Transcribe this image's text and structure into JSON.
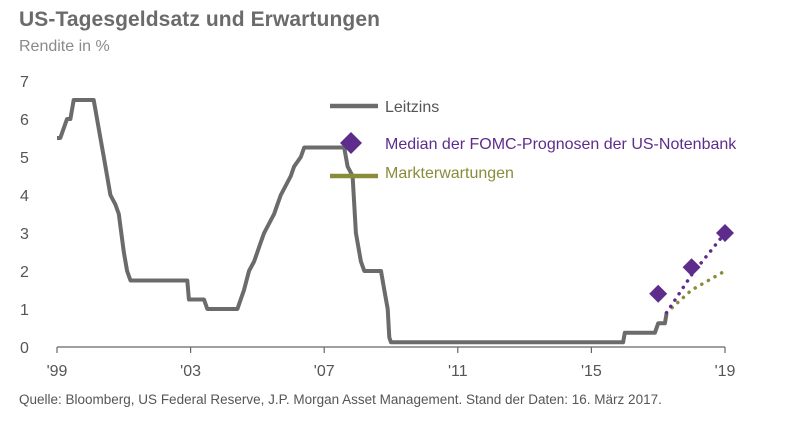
{
  "title": "US-Tagesgeldsatz und Erwartungen",
  "subtitle": "Rendite in %",
  "source": "Quelle: Bloomberg, US Federal Reserve, J.P. Morgan Asset Management. Stand der Daten: 16. März 2017.",
  "chart_data": {
    "type": "line",
    "xlim": [
      1999,
      2019
    ],
    "ylim": [
      0,
      7
    ],
    "x_ticks": [
      {
        "value": 1999,
        "label": "'99"
      },
      {
        "value": 2003,
        "label": "'03"
      },
      {
        "value": 2007,
        "label": "'07"
      },
      {
        "value": 2011,
        "label": "'11"
      },
      {
        "value": 2015,
        "label": "'15"
      },
      {
        "value": 2019,
        "label": "'19"
      }
    ],
    "y_ticks": [
      0,
      1,
      2,
      3,
      4,
      5,
      6,
      7
    ],
    "grid": false,
    "legend_position": "top-right",
    "series": [
      {
        "name": "Leitzins",
        "kind": "line",
        "color": "#6b6b6b",
        "points": [
          [
            1999.0,
            5.5
          ],
          [
            1999.1,
            5.5
          ],
          [
            1999.3,
            6.0
          ],
          [
            1999.4,
            6.0
          ],
          [
            1999.5,
            6.5
          ],
          [
            2000.0,
            6.5
          ],
          [
            2000.1,
            6.5
          ],
          [
            2000.3,
            5.5
          ],
          [
            2000.4,
            5.0
          ],
          [
            2000.5,
            4.5
          ],
          [
            2000.6,
            4.0
          ],
          [
            2000.75,
            3.75
          ],
          [
            2000.85,
            3.5
          ],
          [
            2001.0,
            2.5
          ],
          [
            2001.1,
            2.0
          ],
          [
            2001.2,
            1.75
          ],
          [
            2001.4,
            1.75
          ],
          [
            2002.0,
            1.75
          ],
          [
            2002.9,
            1.75
          ],
          [
            2002.95,
            1.25
          ],
          [
            2003.4,
            1.25
          ],
          [
            2003.5,
            1.0
          ],
          [
            2004.4,
            1.0
          ],
          [
            2004.5,
            1.25
          ],
          [
            2004.6,
            1.5
          ],
          [
            2004.75,
            2.0
          ],
          [
            2004.9,
            2.25
          ],
          [
            2005.0,
            2.5
          ],
          [
            2005.1,
            2.75
          ],
          [
            2005.2,
            3.0
          ],
          [
            2005.35,
            3.25
          ],
          [
            2005.5,
            3.5
          ],
          [
            2005.6,
            3.75
          ],
          [
            2005.7,
            4.0
          ],
          [
            2005.85,
            4.25
          ],
          [
            2006.0,
            4.5
          ],
          [
            2006.1,
            4.75
          ],
          [
            2006.3,
            5.0
          ],
          [
            2006.4,
            5.25
          ],
          [
            2007.6,
            5.25
          ],
          [
            2007.7,
            4.75
          ],
          [
            2007.85,
            4.5
          ],
          [
            2007.95,
            3.0
          ],
          [
            2008.1,
            2.25
          ],
          [
            2008.2,
            2.0
          ],
          [
            2008.7,
            2.0
          ],
          [
            2008.8,
            1.5
          ],
          [
            2008.9,
            1.0
          ],
          [
            2008.95,
            0.25
          ],
          [
            2009.0,
            0.125
          ],
          [
            2015.95,
            0.125
          ],
          [
            2016.0,
            0.375
          ],
          [
            2016.9,
            0.375
          ],
          [
            2017.0,
            0.625
          ],
          [
            2017.2,
            0.625
          ],
          [
            2017.25,
            0.875
          ]
        ]
      },
      {
        "name": "Median der FOMC-Prognosen der US-Notenbank",
        "kind": "markers",
        "color": "#5e2d8c",
        "points": [
          [
            2017.0,
            1.4
          ],
          [
            2018.0,
            2.1
          ],
          [
            2019.0,
            3.0
          ]
        ]
      },
      {
        "name": "Markterwartungen",
        "kind": "dotted-line",
        "color": "#8b8b3c",
        "points": [
          [
            2017.25,
            0.9
          ],
          [
            2018.0,
            1.5
          ],
          [
            2019.0,
            2.0
          ]
        ]
      },
      {
        "name": "",
        "kind": "dotted-line",
        "color": "#5e2d8c",
        "points": [
          [
            2017.25,
            0.9
          ],
          [
            2018.0,
            1.9
          ],
          [
            2019.0,
            3.0
          ]
        ]
      }
    ]
  }
}
